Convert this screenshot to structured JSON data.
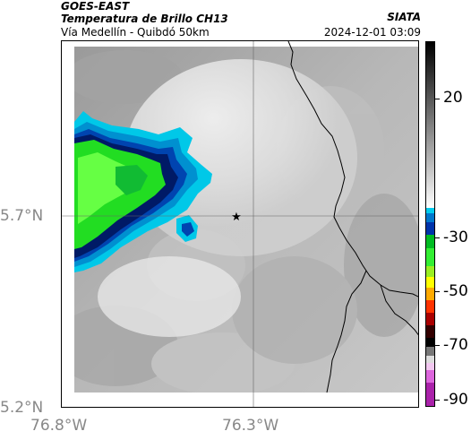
{
  "header": {
    "satellite": "GOES-EAST",
    "product": "Temperatura de Brillo CH13",
    "route": "Vía Medellín - Quibdó 50km",
    "agency": "SIATA",
    "datetime": "2024-12-01 03:09"
  },
  "map": {
    "lat_ticks": [
      "5.7°N",
      "5.2°N"
    ],
    "lon_ticks": [
      "76.8°W",
      "76.3°W"
    ],
    "marker_icon": "star-icon",
    "gridlines": "on"
  },
  "colorbar": {
    "labels": [
      "20",
      "-30",
      "-50",
      "-70",
      "-90"
    ]
  },
  "colors": {
    "cold_cloud_green": "#22dd22",
    "cloud_edge_cyan": "#00c8e8",
    "cloud_mid_blue": "#0044b0",
    "deep_navy": "#001a66",
    "warm_ground_gray": "#b0b0b0"
  }
}
